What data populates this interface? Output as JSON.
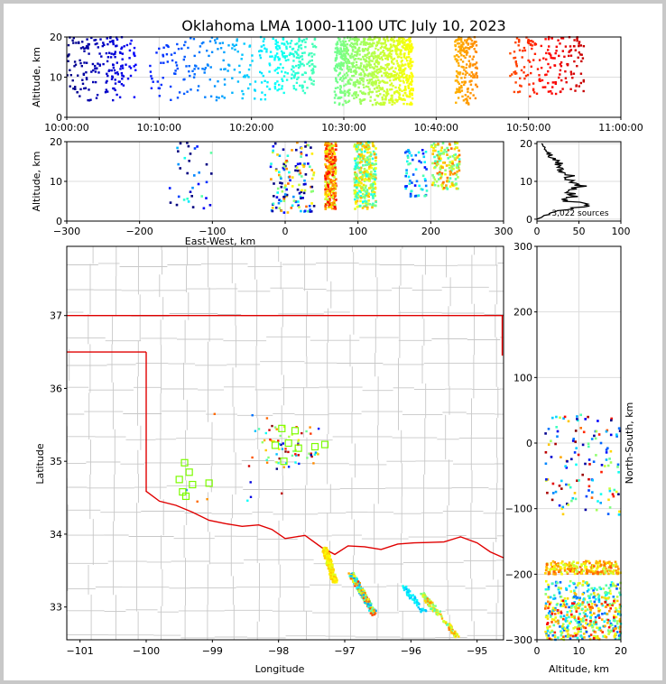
{
  "title": "Oklahoma LMA 1000-1100 UTC July 10, 2023",
  "colors": {
    "state_border": "#e00000",
    "county_lines": "#c8c8c8",
    "grid": "#dddddd",
    "early": "#0000c8",
    "late": "#c80000"
  },
  "chart_data": [
    {
      "id": "time-height",
      "type": "scatter",
      "xlabel": "",
      "ylabel": "Altitude, km",
      "xlim": [
        "10:00:00",
        "11:00:00"
      ],
      "ylim": [
        0,
        20
      ],
      "xticks": [
        "10:00:00",
        "10:10:00",
        "10:20:00",
        "10:30:00",
        "10:40:00",
        "10:50:00",
        "11:00:00"
      ],
      "yticks": [
        "0",
        "10",
        "20"
      ],
      "series": [
        {
          "x_min": "10:00:00",
          "x_max": "10:07:30",
          "alt_km": [
            4,
            20
          ]
        },
        {
          "x_min": "10:09:00",
          "x_max": "10:22:30",
          "alt_km": [
            4,
            20
          ]
        },
        {
          "x_min": "10:22:30",
          "x_max": "10:27:00",
          "alt_km": [
            6,
            20
          ]
        },
        {
          "x_min": "10:29:00",
          "x_max": "10:37:30",
          "alt_km": [
            3,
            20
          ]
        },
        {
          "x_min": "10:42:00",
          "x_max": "10:44:30",
          "alt_km": [
            3,
            20
          ]
        },
        {
          "x_min": "10:48:00",
          "x_max": "10:56:00",
          "alt_km": [
            5,
            20
          ]
        }
      ]
    },
    {
      "id": "east-west-height",
      "type": "scatter",
      "xlabel": "East-West, km",
      "ylabel": "Altitude, km",
      "xlim": [
        -300,
        300
      ],
      "ylim": [
        0,
        20
      ],
      "xticks": [
        "−300",
        "−200",
        "−100",
        "0",
        "100",
        "200",
        "300"
      ],
      "yticks": [
        "0",
        "10",
        "20"
      ],
      "clusters": [
        {
          "x": [
            -160,
            -100
          ],
          "alt_km": [
            3,
            20
          ]
        },
        {
          "x": [
            -20,
            40
          ],
          "alt_km": [
            2,
            20
          ]
        },
        {
          "x": [
            55,
            70
          ],
          "alt_km": [
            3,
            20
          ]
        },
        {
          "x": [
            95,
            125
          ],
          "alt_km": [
            3,
            20
          ]
        },
        {
          "x": [
            165,
            195
          ],
          "alt_km": [
            6,
            18
          ]
        },
        {
          "x": [
            200,
            240
          ],
          "alt_km": [
            8,
            20
          ]
        }
      ]
    },
    {
      "id": "height-histogram",
      "type": "line",
      "annotation": "3,022 sources",
      "xlim": [
        0,
        100
      ],
      "ylim": [
        0,
        20
      ],
      "xticks": [
        "0",
        "50",
        "100"
      ],
      "yticks": [
        "0",
        "10",
        "20"
      ],
      "profile": [
        {
          "alt_km": 0,
          "count": 0
        },
        {
          "alt_km": 2,
          "count": 20
        },
        {
          "alt_km": 3.5,
          "count": 70
        },
        {
          "alt_km": 5,
          "count": 35
        },
        {
          "alt_km": 7,
          "count": 45
        },
        {
          "alt_km": 9,
          "count": 55
        },
        {
          "alt_km": 11,
          "count": 40
        },
        {
          "alt_km": 13,
          "count": 30
        },
        {
          "alt_km": 15,
          "count": 25
        },
        {
          "alt_km": 17,
          "count": 15
        },
        {
          "alt_km": 19,
          "count": 10
        },
        {
          "alt_km": 20,
          "count": 5
        }
      ]
    },
    {
      "id": "plan-view",
      "type": "scatter",
      "xlabel": "Longitude",
      "ylabel": "Latitude",
      "xlim": [
        -101.2,
        -94.6
      ],
      "ylim": [
        32.55,
        37.95
      ],
      "xticks": [
        "−101",
        "−100",
        "−99",
        "−98",
        "−97",
        "−96",
        "−95"
      ],
      "yticks": [
        "33",
        "34",
        "35",
        "36",
        "37"
      ],
      "stations": [
        {
          "lon": -97.95,
          "lat": 35.45
        },
        {
          "lon": -97.75,
          "lat": 35.42
        },
        {
          "lon": -98.05,
          "lat": 35.22
        },
        {
          "lon": -97.85,
          "lat": 35.25
        },
        {
          "lon": -97.7,
          "lat": 35.18
        },
        {
          "lon": -97.45,
          "lat": 35.2
        },
        {
          "lon": -97.3,
          "lat": 35.23
        },
        {
          "lon": -97.92,
          "lat": 35.0
        },
        {
          "lon": -99.42,
          "lat": 34.98
        },
        {
          "lon": -99.35,
          "lat": 34.85
        },
        {
          "lon": -99.5,
          "lat": 34.75
        },
        {
          "lon": -99.3,
          "lat": 34.68
        },
        {
          "lon": -99.45,
          "lat": 34.58
        },
        {
          "lon": -99.4,
          "lat": 34.52
        },
        {
          "lon": -99.05,
          "lat": 34.7
        }
      ]
    },
    {
      "id": "height-north-south",
      "type": "scatter",
      "xlabel": "Altitude, km",
      "ylabel": "North-South, km",
      "xlim": [
        0,
        20
      ],
      "ylim": [
        -300,
        300
      ],
      "xticks": [
        "0",
        "10",
        "20"
      ],
      "yticks": [
        "−300",
        "−200",
        "−100",
        "0",
        "100",
        "200",
        "300"
      ]
    }
  ]
}
